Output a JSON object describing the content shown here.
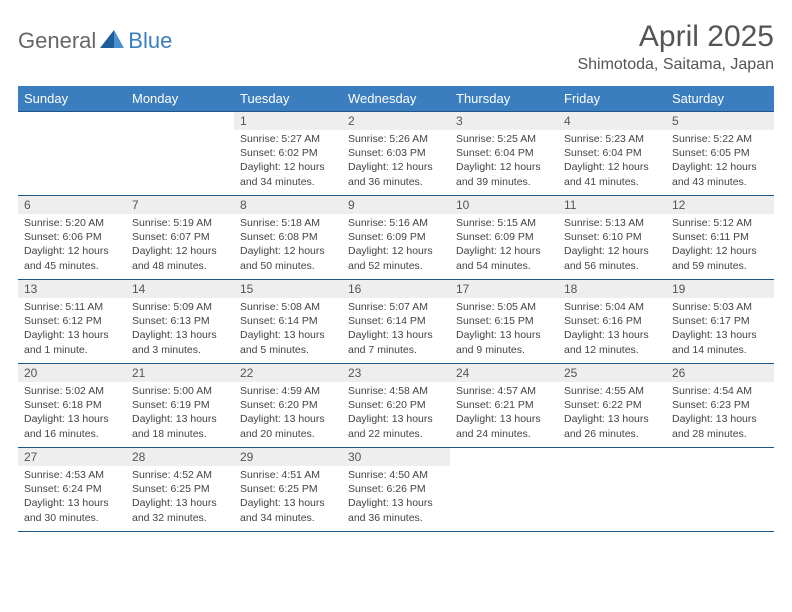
{
  "brand": {
    "part1": "General",
    "part2": "Blue"
  },
  "title": "April 2025",
  "location": "Shimotoda, Saitama, Japan",
  "colors": {
    "header_bg": "#3b7ec0",
    "header_text": "#ffffff",
    "row_border": "#20568a",
    "daynum_bg": "#eeeeee",
    "text": "#444444",
    "title_text": "#555555"
  },
  "daysOfWeek": [
    "Sunday",
    "Monday",
    "Tuesday",
    "Wednesday",
    "Thursday",
    "Friday",
    "Saturday"
  ],
  "weeks": [
    [
      null,
      null,
      {
        "n": "1",
        "sr": "5:27 AM",
        "ss": "6:02 PM",
        "dl": "12 hours and 34 minutes."
      },
      {
        "n": "2",
        "sr": "5:26 AM",
        "ss": "6:03 PM",
        "dl": "12 hours and 36 minutes."
      },
      {
        "n": "3",
        "sr": "5:25 AM",
        "ss": "6:04 PM",
        "dl": "12 hours and 39 minutes."
      },
      {
        "n": "4",
        "sr": "5:23 AM",
        "ss": "6:04 PM",
        "dl": "12 hours and 41 minutes."
      },
      {
        "n": "5",
        "sr": "5:22 AM",
        "ss": "6:05 PM",
        "dl": "12 hours and 43 minutes."
      }
    ],
    [
      {
        "n": "6",
        "sr": "5:20 AM",
        "ss": "6:06 PM",
        "dl": "12 hours and 45 minutes."
      },
      {
        "n": "7",
        "sr": "5:19 AM",
        "ss": "6:07 PM",
        "dl": "12 hours and 48 minutes."
      },
      {
        "n": "8",
        "sr": "5:18 AM",
        "ss": "6:08 PM",
        "dl": "12 hours and 50 minutes."
      },
      {
        "n": "9",
        "sr": "5:16 AM",
        "ss": "6:09 PM",
        "dl": "12 hours and 52 minutes."
      },
      {
        "n": "10",
        "sr": "5:15 AM",
        "ss": "6:09 PM",
        "dl": "12 hours and 54 minutes."
      },
      {
        "n": "11",
        "sr": "5:13 AM",
        "ss": "6:10 PM",
        "dl": "12 hours and 56 minutes."
      },
      {
        "n": "12",
        "sr": "5:12 AM",
        "ss": "6:11 PM",
        "dl": "12 hours and 59 minutes."
      }
    ],
    [
      {
        "n": "13",
        "sr": "5:11 AM",
        "ss": "6:12 PM",
        "dl": "13 hours and 1 minute."
      },
      {
        "n": "14",
        "sr": "5:09 AM",
        "ss": "6:13 PM",
        "dl": "13 hours and 3 minutes."
      },
      {
        "n": "15",
        "sr": "5:08 AM",
        "ss": "6:14 PM",
        "dl": "13 hours and 5 minutes."
      },
      {
        "n": "16",
        "sr": "5:07 AM",
        "ss": "6:14 PM",
        "dl": "13 hours and 7 minutes."
      },
      {
        "n": "17",
        "sr": "5:05 AM",
        "ss": "6:15 PM",
        "dl": "13 hours and 9 minutes."
      },
      {
        "n": "18",
        "sr": "5:04 AM",
        "ss": "6:16 PM",
        "dl": "13 hours and 12 minutes."
      },
      {
        "n": "19",
        "sr": "5:03 AM",
        "ss": "6:17 PM",
        "dl": "13 hours and 14 minutes."
      }
    ],
    [
      {
        "n": "20",
        "sr": "5:02 AM",
        "ss": "6:18 PM",
        "dl": "13 hours and 16 minutes."
      },
      {
        "n": "21",
        "sr": "5:00 AM",
        "ss": "6:19 PM",
        "dl": "13 hours and 18 minutes."
      },
      {
        "n": "22",
        "sr": "4:59 AM",
        "ss": "6:20 PM",
        "dl": "13 hours and 20 minutes."
      },
      {
        "n": "23",
        "sr": "4:58 AM",
        "ss": "6:20 PM",
        "dl": "13 hours and 22 minutes."
      },
      {
        "n": "24",
        "sr": "4:57 AM",
        "ss": "6:21 PM",
        "dl": "13 hours and 24 minutes."
      },
      {
        "n": "25",
        "sr": "4:55 AM",
        "ss": "6:22 PM",
        "dl": "13 hours and 26 minutes."
      },
      {
        "n": "26",
        "sr": "4:54 AM",
        "ss": "6:23 PM",
        "dl": "13 hours and 28 minutes."
      }
    ],
    [
      {
        "n": "27",
        "sr": "4:53 AM",
        "ss": "6:24 PM",
        "dl": "13 hours and 30 minutes."
      },
      {
        "n": "28",
        "sr": "4:52 AM",
        "ss": "6:25 PM",
        "dl": "13 hours and 32 minutes."
      },
      {
        "n": "29",
        "sr": "4:51 AM",
        "ss": "6:25 PM",
        "dl": "13 hours and 34 minutes."
      },
      {
        "n": "30",
        "sr": "4:50 AM",
        "ss": "6:26 PM",
        "dl": "13 hours and 36 minutes."
      },
      null,
      null,
      null
    ]
  ],
  "labels": {
    "sunrise": "Sunrise:",
    "sunset": "Sunset:",
    "daylight": "Daylight:"
  }
}
